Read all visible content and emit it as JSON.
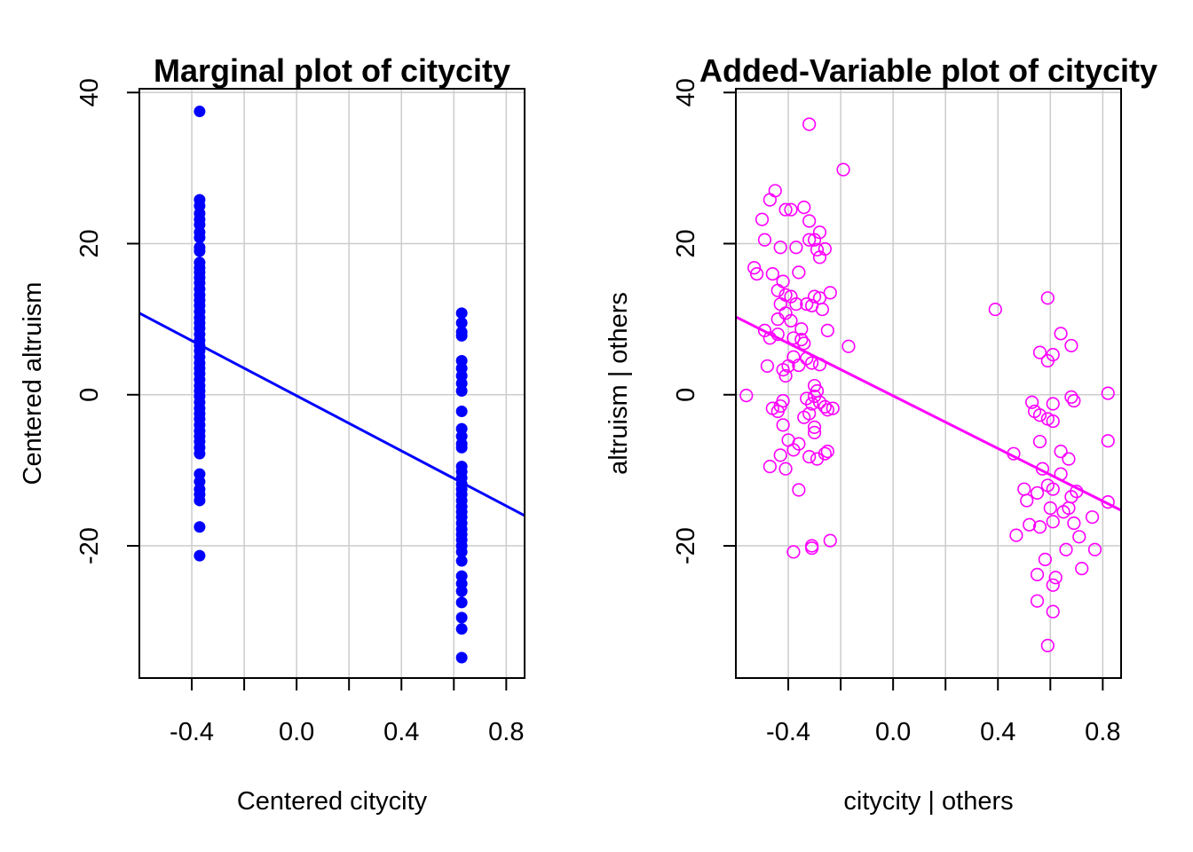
{
  "chart_data": [
    {
      "type": "scatter",
      "title": "Marginal plot of citycity",
      "xlabel": "Centered citycity",
      "ylabel": "Centered altruism",
      "xlim": [
        -0.6,
        0.87
      ],
      "ylim": [
        -37.5,
        40.5
      ],
      "xticks": [
        "-0.4",
        "0.0",
        "0.4",
        "0.8"
      ],
      "xtick_values": [
        -0.4,
        0.0,
        0.4,
        0.8
      ],
      "minor_xticks": [
        -0.2,
        0.2,
        0.6
      ],
      "yticks": [
        "-20",
        "0",
        "20",
        "40"
      ],
      "ytick_values": [
        -20,
        0,
        20,
        40
      ],
      "grid": true,
      "marker": "filled-circle",
      "color": "#0000ff",
      "series": [
        {
          "x": -0.37,
          "y": [
            37.5,
            25.8,
            25.0,
            24.0,
            23.2,
            22.5,
            21.5,
            20.8,
            19.5,
            19.0,
            17.5,
            16.8,
            16.2,
            15.5,
            14.8,
            14.0,
            13.2,
            12.5,
            11.8,
            11.0,
            10.2,
            9.5,
            8.8,
            8.0,
            7.2,
            6.5,
            5.8,
            5.0,
            4.2,
            3.5,
            2.8,
            2.0,
            1.2,
            0.5,
            -0.2,
            -1.0,
            -1.8,
            -2.5,
            -3.2,
            -4.0,
            -4.8,
            -5.5,
            -6.2,
            -7.0,
            -7.8,
            -10.5,
            -11.5,
            -12.5,
            -13.2,
            -14.0,
            -17.5,
            -21.3
          ]
        },
        {
          "x": 0.63,
          "y": [
            10.8,
            9.5,
            8.3,
            7.8,
            4.5,
            3.5,
            2.5,
            1.5,
            0.5,
            -2.2,
            -4.5,
            -5.5,
            -6.5,
            -7.0,
            -9.5,
            -10.2,
            -11.0,
            -11.8,
            -12.5,
            -13.2,
            -14.0,
            -14.8,
            -15.5,
            -16.2,
            -17.0,
            -17.8,
            -18.5,
            -19.2,
            -20.0,
            -20.8,
            -22.0,
            -24.0,
            -25.0,
            -26.0,
            -27.5,
            -29.5,
            -31.0,
            -34.8
          ]
        }
      ],
      "fit_line": {
        "x": [
          -0.6,
          0.87
        ],
        "y": [
          10.8,
          -16.0
        ]
      }
    },
    {
      "type": "scatter",
      "title": "Added-Variable plot of citycity",
      "xlabel": "citycity | others",
      "ylabel": "altruism  | others",
      "xlim": [
        -0.6,
        0.87
      ],
      "ylim": [
        -37.5,
        40.5
      ],
      "xticks": [
        "-0.4",
        "0.0",
        "0.4",
        "0.8"
      ],
      "xtick_values": [
        -0.4,
        0.0,
        0.4,
        0.8
      ],
      "minor_xticks": [
        -0.2,
        0.2,
        0.6
      ],
      "yticks": [
        "-20",
        "0",
        "20",
        "40"
      ],
      "ytick_values": [
        -20,
        0,
        20,
        40
      ],
      "grid": true,
      "marker": "open-circle",
      "color": "#ff00ff",
      "points": [
        [
          -0.32,
          35.8
        ],
        [
          -0.19,
          29.8
        ],
        [
          -0.45,
          27.0
        ],
        [
          -0.47,
          25.8
        ],
        [
          -0.41,
          24.5
        ],
        [
          -0.39,
          24.5
        ],
        [
          -0.34,
          24.8
        ],
        [
          -0.32,
          23.0
        ],
        [
          -0.5,
          23.2
        ],
        [
          -0.28,
          21.5
        ],
        [
          -0.3,
          20.5
        ],
        [
          -0.49,
          20.5
        ],
        [
          -0.32,
          20.5
        ],
        [
          -0.43,
          19.5
        ],
        [
          -0.29,
          19.2
        ],
        [
          -0.37,
          19.5
        ],
        [
          -0.26,
          19.3
        ],
        [
          -0.28,
          18.2
        ],
        [
          -0.53,
          16.8
        ],
        [
          -0.52,
          16.0
        ],
        [
          -0.46,
          16.0
        ],
        [
          -0.36,
          16.2
        ],
        [
          -0.42,
          15.0
        ],
        [
          -0.44,
          13.8
        ],
        [
          -0.41,
          13.2
        ],
        [
          -0.39,
          13.0
        ],
        [
          -0.3,
          13.0
        ],
        [
          -0.28,
          12.8
        ],
        [
          -0.24,
          13.5
        ],
        [
          -0.37,
          12.0
        ],
        [
          -0.33,
          12.0
        ],
        [
          -0.43,
          12.0
        ],
        [
          -0.31,
          11.8
        ],
        [
          -0.27,
          11.3
        ],
        [
          -0.41,
          10.8
        ],
        [
          -0.44,
          10.0
        ],
        [
          -0.39,
          9.8
        ],
        [
          -0.49,
          8.5
        ],
        [
          -0.35,
          8.7
        ],
        [
          -0.25,
          8.5
        ],
        [
          -0.44,
          8.0
        ],
        [
          -0.47,
          7.5
        ],
        [
          -0.38,
          7.5
        ],
        [
          -0.35,
          7.3
        ],
        [
          -0.34,
          6.8
        ],
        [
          -0.17,
          6.4
        ],
        [
          -0.38,
          5.0
        ],
        [
          -0.33,
          4.8
        ],
        [
          -0.31,
          4.2
        ],
        [
          -0.28,
          4.0
        ],
        [
          -0.4,
          3.8
        ],
        [
          -0.48,
          3.8
        ],
        [
          -0.36,
          3.9
        ],
        [
          -0.42,
          3.3
        ],
        [
          -0.41,
          2.5
        ],
        [
          -0.3,
          1.2
        ],
        [
          -0.29,
          0.5
        ],
        [
          -0.3,
          -0.2
        ],
        [
          -0.33,
          -0.5
        ],
        [
          -0.42,
          -0.8
        ],
        [
          -0.28,
          -1.0
        ],
        [
          -0.31,
          -1.2
        ],
        [
          -0.43,
          -1.5
        ],
        [
          -0.26,
          -1.6
        ],
        [
          -0.46,
          -1.8
        ],
        [
          -0.23,
          -1.8
        ],
        [
          -0.44,
          -2.2
        ],
        [
          -0.25,
          -2.0
        ],
        [
          -0.32,
          -2.5
        ],
        [
          -0.34,
          -3.0
        ],
        [
          -0.42,
          -4.0
        ],
        [
          -0.3,
          -4.3
        ],
        [
          -0.3,
          -5.0
        ],
        [
          -0.4,
          -6.0
        ],
        [
          -0.36,
          -6.5
        ],
        [
          -0.38,
          -7.3
        ],
        [
          -0.25,
          -7.5
        ],
        [
          -0.26,
          -7.8
        ],
        [
          -0.43,
          -8.0
        ],
        [
          -0.32,
          -8.2
        ],
        [
          -0.29,
          -8.5
        ],
        [
          -0.47,
          -9.5
        ],
        [
          -0.41,
          -9.8
        ],
        [
          -0.36,
          -12.6
        ],
        [
          -0.24,
          -19.3
        ],
        [
          -0.31,
          -20.0
        ],
        [
          -0.31,
          -20.3
        ],
        [
          -0.38,
          -20.8
        ],
        [
          -0.56,
          -0.1
        ],
        [
          0.39,
          11.3
        ],
        [
          0.59,
          12.8
        ],
        [
          0.64,
          8.1
        ],
        [
          0.68,
          6.5
        ],
        [
          0.61,
          5.3
        ],
        [
          0.56,
          5.6
        ],
        [
          0.59,
          4.5
        ],
        [
          0.82,
          0.2
        ],
        [
          0.68,
          -0.3
        ],
        [
          0.69,
          -0.8
        ],
        [
          0.53,
          -1.0
        ],
        [
          0.61,
          -1.2
        ],
        [
          0.54,
          -2.2
        ],
        [
          0.56,
          -2.7
        ],
        [
          0.59,
          -3.2
        ],
        [
          0.61,
          -3.5
        ],
        [
          0.56,
          -6.2
        ],
        [
          0.82,
          -6.1
        ],
        [
          0.64,
          -7.5
        ],
        [
          0.46,
          -7.8
        ],
        [
          0.67,
          -8.5
        ],
        [
          0.57,
          -9.8
        ],
        [
          0.64,
          -10.5
        ],
        [
          0.59,
          -12.0
        ],
        [
          0.61,
          -12.5
        ],
        [
          0.5,
          -12.5
        ],
        [
          0.7,
          -12.8
        ],
        [
          0.55,
          -13.0
        ],
        [
          0.68,
          -13.5
        ],
        [
          0.51,
          -14.0
        ],
        [
          0.82,
          -14.2
        ],
        [
          0.6,
          -15.0
        ],
        [
          0.67,
          -15.0
        ],
        [
          0.65,
          -15.5
        ],
        [
          0.76,
          -16.2
        ],
        [
          0.61,
          -16.8
        ],
        [
          0.69,
          -17.0
        ],
        [
          0.52,
          -17.2
        ],
        [
          0.56,
          -17.5
        ],
        [
          0.47,
          -18.6
        ],
        [
          0.71,
          -18.8
        ],
        [
          0.66,
          -20.5
        ],
        [
          0.77,
          -20.5
        ],
        [
          0.58,
          -21.8
        ],
        [
          0.72,
          -23.0
        ],
        [
          0.55,
          -23.8
        ],
        [
          0.62,
          -24.2
        ],
        [
          0.61,
          -25.2
        ],
        [
          0.55,
          -27.3
        ],
        [
          0.61,
          -28.7
        ],
        [
          0.59,
          -33.2
        ]
      ],
      "fit_line": {
        "x": [
          -0.6,
          0.87
        ],
        "y": [
          10.3,
          -15.3
        ]
      }
    }
  ]
}
